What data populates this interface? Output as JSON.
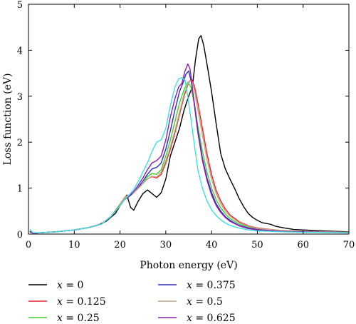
{
  "chart_data": {
    "type": "line",
    "xlabel": "Photon energy (eV)",
    "ylabel": "Loss function (eV)",
    "xlim": [
      0,
      70
    ],
    "ylim": [
      0,
      5
    ],
    "x_ticks": [
      0,
      10,
      20,
      30,
      40,
      50,
      60,
      70
    ],
    "y_ticks": [
      0,
      1,
      2,
      3,
      4,
      5
    ],
    "legend_placement": "below",
    "grid": false,
    "series": [
      {
        "name": "x = 0",
        "var": "x",
        "value": "= 0",
        "color": "#000000",
        "points": [
          [
            0.3,
            0.06
          ],
          [
            1,
            0.02
          ],
          [
            3,
            0.03
          ],
          [
            6,
            0.05
          ],
          [
            10,
            0.09
          ],
          [
            13,
            0.14
          ],
          [
            15,
            0.19
          ],
          [
            17,
            0.28
          ],
          [
            19,
            0.45
          ],
          [
            20.5,
            0.7
          ],
          [
            21.5,
            0.85
          ],
          [
            22.3,
            0.58
          ],
          [
            23,
            0.52
          ],
          [
            24,
            0.72
          ],
          [
            25,
            0.88
          ],
          [
            26,
            0.96
          ],
          [
            27,
            0.88
          ],
          [
            28,
            0.8
          ],
          [
            29,
            0.9
          ],
          [
            30,
            1.2
          ],
          [
            31,
            1.7
          ],
          [
            32,
            2.0
          ],
          [
            33,
            2.3
          ],
          [
            34,
            2.7
          ],
          [
            35,
            3.0
          ],
          [
            35.8,
            3.2
          ],
          [
            36.5,
            3.8
          ],
          [
            37.2,
            4.25
          ],
          [
            37.7,
            4.32
          ],
          [
            38.3,
            4.1
          ],
          [
            39,
            3.7
          ],
          [
            40,
            3.1
          ],
          [
            41,
            2.4
          ],
          [
            42,
            1.75
          ],
          [
            43,
            1.42
          ],
          [
            44,
            1.2
          ],
          [
            45,
            1.0
          ],
          [
            46,
            0.78
          ],
          [
            47,
            0.6
          ],
          [
            48,
            0.45
          ],
          [
            49,
            0.36
          ],
          [
            50,
            0.3
          ],
          [
            51,
            0.25
          ],
          [
            52,
            0.23
          ],
          [
            53,
            0.21
          ],
          [
            54,
            0.17
          ],
          [
            56,
            0.13
          ],
          [
            58,
            0.1
          ],
          [
            60,
            0.09
          ],
          [
            64,
            0.07
          ],
          [
            70,
            0.05
          ]
        ]
      },
      {
        "name": "x = 0.125",
        "var": "x",
        "value": "= 0.125",
        "color": "#e8242b",
        "points": [
          [
            0.3,
            0.05
          ],
          [
            1,
            0.02
          ],
          [
            3,
            0.03
          ],
          [
            6,
            0.05
          ],
          [
            10,
            0.09
          ],
          [
            13,
            0.14
          ],
          [
            16,
            0.22
          ],
          [
            18,
            0.38
          ],
          [
            20,
            0.65
          ],
          [
            21,
            0.8
          ],
          [
            22,
            0.85
          ],
          [
            23,
            0.9
          ],
          [
            24,
            1.0
          ],
          [
            25,
            1.1
          ],
          [
            26,
            1.2
          ],
          [
            27,
            1.25
          ],
          [
            28,
            1.22
          ],
          [
            29,
            1.3
          ],
          [
            30,
            1.55
          ],
          [
            31,
            1.85
          ],
          [
            32,
            2.2
          ],
          [
            33,
            2.6
          ],
          [
            34,
            3.0
          ],
          [
            35,
            3.3
          ],
          [
            35.6,
            3.38
          ],
          [
            36.3,
            3.2
          ],
          [
            37,
            2.85
          ],
          [
            38,
            2.3
          ],
          [
            39,
            1.75
          ],
          [
            40,
            1.3
          ],
          [
            41,
            0.95
          ],
          [
            42,
            0.72
          ],
          [
            43,
            0.55
          ],
          [
            44,
            0.42
          ],
          [
            46,
            0.27
          ],
          [
            48,
            0.18
          ],
          [
            50,
            0.13
          ],
          [
            55,
            0.08
          ],
          [
            60,
            0.06
          ],
          [
            70,
            0.04
          ]
        ]
      },
      {
        "name": "x = 0.25",
        "var": "x",
        "value": "= 0.25",
        "color": "#3fd12f",
        "points": [
          [
            0.3,
            0.05
          ],
          [
            1,
            0.02
          ],
          [
            3,
            0.03
          ],
          [
            6,
            0.05
          ],
          [
            10,
            0.09
          ],
          [
            13,
            0.14
          ],
          [
            16,
            0.22
          ],
          [
            18,
            0.38
          ],
          [
            20,
            0.65
          ],
          [
            21,
            0.78
          ],
          [
            22,
            0.83
          ],
          [
            23,
            0.9
          ],
          [
            24,
            1.0
          ],
          [
            25,
            1.1
          ],
          [
            26,
            1.25
          ],
          [
            27,
            1.32
          ],
          [
            28,
            1.3
          ],
          [
            29,
            1.4
          ],
          [
            30,
            1.7
          ],
          [
            31,
            2.05
          ],
          [
            32,
            2.45
          ],
          [
            33,
            2.85
          ],
          [
            34,
            3.15
          ],
          [
            34.8,
            3.3
          ],
          [
            35.5,
            3.2
          ],
          [
            36.3,
            2.8
          ],
          [
            37,
            2.35
          ],
          [
            38,
            1.8
          ],
          [
            39,
            1.35
          ],
          [
            40,
            1.0
          ],
          [
            41,
            0.75
          ],
          [
            42,
            0.57
          ],
          [
            43,
            0.44
          ],
          [
            44,
            0.34
          ],
          [
            46,
            0.22
          ],
          [
            48,
            0.15
          ],
          [
            50,
            0.11
          ],
          [
            55,
            0.07
          ],
          [
            60,
            0.05
          ],
          [
            70,
            0.04
          ]
        ]
      },
      {
        "name": "x = 0.375",
        "var": "x",
        "value": "= 0.375",
        "color": "#2d2dbf",
        "points": [
          [
            0.3,
            0.05
          ],
          [
            1,
            0.02
          ],
          [
            3,
            0.03
          ],
          [
            6,
            0.05
          ],
          [
            10,
            0.09
          ],
          [
            13,
            0.14
          ],
          [
            16,
            0.22
          ],
          [
            18,
            0.38
          ],
          [
            20,
            0.62
          ],
          [
            21,
            0.75
          ],
          [
            22,
            0.82
          ],
          [
            23,
            0.9
          ],
          [
            24,
            1.02
          ],
          [
            25,
            1.15
          ],
          [
            26,
            1.3
          ],
          [
            27,
            1.42
          ],
          [
            28,
            1.45
          ],
          [
            29,
            1.55
          ],
          [
            30,
            1.85
          ],
          [
            31,
            2.25
          ],
          [
            32,
            2.7
          ],
          [
            33,
            3.1
          ],
          [
            33.8,
            3.3
          ],
          [
            34.4,
            3.48
          ],
          [
            35,
            3.55
          ],
          [
            35.6,
            3.3
          ],
          [
            36.3,
            2.8
          ],
          [
            37,
            2.25
          ],
          [
            38,
            1.65
          ],
          [
            39,
            1.22
          ],
          [
            40,
            0.9
          ],
          [
            41,
            0.66
          ],
          [
            42,
            0.5
          ],
          [
            43,
            0.38
          ],
          [
            44,
            0.3
          ],
          [
            46,
            0.19
          ],
          [
            48,
            0.13
          ],
          [
            50,
            0.1
          ],
          [
            55,
            0.06
          ],
          [
            60,
            0.05
          ],
          [
            70,
            0.03
          ]
        ]
      },
      {
        "name": "x = 0.5",
        "var": "x",
        "value": "= 0.5",
        "color": "#c7a589",
        "points": [
          [
            0.3,
            0.05
          ],
          [
            1,
            0.02
          ],
          [
            3,
            0.03
          ],
          [
            6,
            0.05
          ],
          [
            10,
            0.09
          ],
          [
            13,
            0.14
          ],
          [
            16,
            0.22
          ],
          [
            18,
            0.38
          ],
          [
            20,
            0.64
          ],
          [
            21,
            0.8
          ],
          [
            22,
            0.85
          ],
          [
            23,
            0.9
          ],
          [
            24,
            1.0
          ],
          [
            25,
            1.1
          ],
          [
            26,
            1.2
          ],
          [
            27,
            1.26
          ],
          [
            28,
            1.24
          ],
          [
            29,
            1.35
          ],
          [
            30,
            1.6
          ],
          [
            31,
            1.9
          ],
          [
            32,
            2.25
          ],
          [
            33,
            2.65
          ],
          [
            34,
            3.05
          ],
          [
            35,
            3.32
          ],
          [
            35.6,
            3.35
          ],
          [
            36.3,
            3.1
          ],
          [
            37,
            2.7
          ],
          [
            38,
            2.15
          ],
          [
            39,
            1.62
          ],
          [
            40,
            1.2
          ],
          [
            41,
            0.88
          ],
          [
            42,
            0.66
          ],
          [
            43,
            0.5
          ],
          [
            44,
            0.39
          ],
          [
            46,
            0.25
          ],
          [
            48,
            0.17
          ],
          [
            50,
            0.12
          ],
          [
            55,
            0.08
          ],
          [
            60,
            0.06
          ],
          [
            70,
            0.04
          ]
        ]
      },
      {
        "name": "x = 0.625",
        "var": "x",
        "value": "= 0.625",
        "color": "#8a1fb0",
        "points": [
          [
            0.3,
            0.05
          ],
          [
            1,
            0.02
          ],
          [
            3,
            0.03
          ],
          [
            6,
            0.05
          ],
          [
            10,
            0.09
          ],
          [
            13,
            0.14
          ],
          [
            16,
            0.22
          ],
          [
            18,
            0.38
          ],
          [
            20,
            0.62
          ],
          [
            21,
            0.75
          ],
          [
            22,
            0.83
          ],
          [
            23,
            0.93
          ],
          [
            24,
            1.07
          ],
          [
            25,
            1.22
          ],
          [
            26,
            1.4
          ],
          [
            27,
            1.55
          ],
          [
            28,
            1.6
          ],
          [
            29,
            1.7
          ],
          [
            30,
            2.05
          ],
          [
            31,
            2.55
          ],
          [
            32,
            2.95
          ],
          [
            32.8,
            3.2
          ],
          [
            33.5,
            3.28
          ],
          [
            34.2,
            3.55
          ],
          [
            34.8,
            3.7
          ],
          [
            35.3,
            3.6
          ],
          [
            36,
            3.0
          ],
          [
            37,
            2.2
          ],
          [
            38,
            1.6
          ],
          [
            39,
            1.17
          ],
          [
            40,
            0.85
          ],
          [
            41,
            0.62
          ],
          [
            42,
            0.47
          ],
          [
            43,
            0.36
          ],
          [
            44,
            0.28
          ],
          [
            46,
            0.18
          ],
          [
            48,
            0.12
          ],
          [
            50,
            0.09
          ],
          [
            55,
            0.06
          ],
          [
            60,
            0.05
          ],
          [
            70,
            0.03
          ]
        ]
      },
      {
        "name": "",
        "var": "",
        "value": "",
        "color": "#3fe0e0",
        "points": [
          [
            0.3,
            0.1
          ],
          [
            1,
            0.03
          ],
          [
            3,
            0.03
          ],
          [
            6,
            0.05
          ],
          [
            10,
            0.09
          ],
          [
            13,
            0.14
          ],
          [
            16,
            0.22
          ],
          [
            18,
            0.38
          ],
          [
            20,
            0.62
          ],
          [
            21,
            0.75
          ],
          [
            22,
            0.85
          ],
          [
            23,
            0.98
          ],
          [
            24,
            1.15
          ],
          [
            25,
            1.35
          ],
          [
            26,
            1.55
          ],
          [
            27,
            1.8
          ],
          [
            28,
            2.0
          ],
          [
            29,
            2.05
          ],
          [
            30,
            2.3
          ],
          [
            31,
            2.8
          ],
          [
            32,
            3.2
          ],
          [
            32.8,
            3.38
          ],
          [
            33.5,
            3.4
          ],
          [
            34.2,
            3.35
          ],
          [
            34.8,
            3.0
          ],
          [
            35.5,
            2.5
          ],
          [
            36.3,
            1.9
          ],
          [
            37,
            1.4
          ],
          [
            38,
            1.0
          ],
          [
            39,
            0.72
          ],
          [
            40,
            0.53
          ],
          [
            41,
            0.4
          ],
          [
            42,
            0.31
          ],
          [
            43,
            0.24
          ],
          [
            44,
            0.19
          ],
          [
            46,
            0.13
          ],
          [
            48,
            0.09
          ],
          [
            50,
            0.07
          ],
          [
            55,
            0.05
          ],
          [
            60,
            0.04
          ],
          [
            70,
            0.03
          ]
        ]
      }
    ]
  }
}
